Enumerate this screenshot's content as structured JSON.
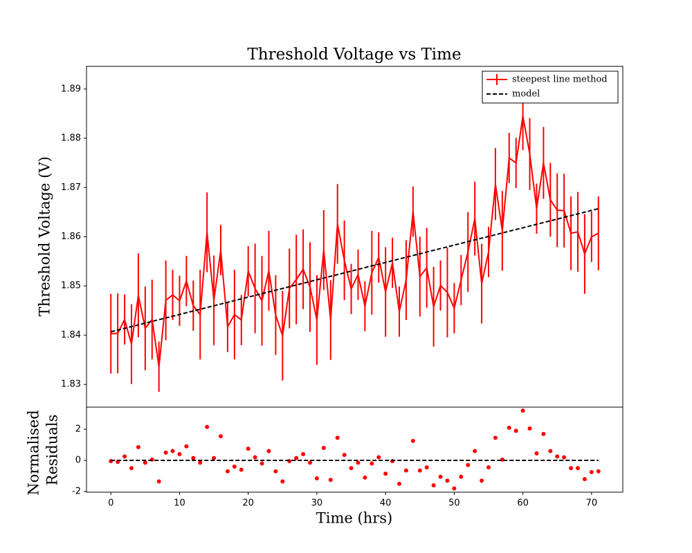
{
  "chart_data": [
    {
      "type": "line",
      "title": "Threshold Voltage vs Time",
      "ylabel": "Threshold Voltage (V)",
      "xlim": [
        -3.55,
        74.55
      ],
      "ylim": [
        1.8254,
        1.8946
      ],
      "yticks": [
        1.83,
        1.84,
        1.85,
        1.86,
        1.87,
        1.88,
        1.89
      ],
      "legend": "upper right",
      "series": [
        {
          "name": "steepest line method",
          "color": "#ff0000",
          "errorbars": true,
          "x": [
            0,
            1,
            2,
            3,
            4,
            5,
            6,
            7,
            8,
            9,
            10,
            11,
            12,
            13,
            14,
            15,
            16,
            17,
            18,
            19,
            20,
            21,
            22,
            23,
            24,
            25,
            26,
            27,
            28,
            29,
            30,
            31,
            32,
            33,
            34,
            35,
            36,
            37,
            38,
            39,
            40,
            41,
            42,
            43,
            44,
            45,
            46,
            47,
            48,
            49,
            50,
            51,
            52,
            53,
            54,
            55,
            56,
            57,
            58,
            59,
            60,
            61,
            62,
            63,
            64,
            65,
            66,
            67,
            68,
            69,
            70,
            71
          ],
          "values": [
            1.8403,
            1.8404,
            1.8432,
            1.8382,
            1.8481,
            1.8414,
            1.8432,
            1.8336,
            1.8471,
            1.8482,
            1.847,
            1.851,
            1.846,
            1.8442,
            1.8609,
            1.8471,
            1.8573,
            1.8417,
            1.8442,
            1.8431,
            1.853,
            1.8495,
            1.847,
            1.8531,
            1.8441,
            1.8399,
            1.8495,
            1.8513,
            1.8534,
            1.8498,
            1.8431,
            1.8573,
            1.8431,
            1.8626,
            1.8552,
            1.8494,
            1.8523,
            1.8459,
            1.8527,
            1.8558,
            1.8488,
            1.8547,
            1.8448,
            1.8512,
            1.8651,
            1.8519,
            1.8537,
            1.8458,
            1.8501,
            1.8487,
            1.8455,
            1.8512,
            1.8569,
            1.8637,
            1.8505,
            1.8569,
            1.8707,
            1.8612,
            1.876,
            1.875,
            1.8845,
            1.8768,
            1.8657,
            1.875,
            1.8675,
            1.8654,
            1.8653,
            1.8607,
            1.861,
            1.8565,
            1.86,
            1.8607
          ],
          "errors": [
            0.0081,
            0.0081,
            0.0051,
            0.0081,
            0.0085,
            0.0085,
            0.0081,
            0.0051,
            0.0081,
            0.0051,
            0.0051,
            0.0051,
            0.0051,
            0.0091,
            0.0081,
            0.0091,
            0.0051,
            0.0051,
            0.0091,
            0.0051,
            0.0051,
            0.0091,
            0.0091,
            0.0081,
            0.0081,
            0.0091,
            0.0081,
            0.0091,
            0.0081,
            0.0091,
            0.0091,
            0.0081,
            0.0081,
            0.0081,
            0.0081,
            0.0051,
            0.0051,
            0.0051,
            0.0085,
            0.0051,
            0.0091,
            0.0051,
            0.0051,
            0.0081,
            0.0051,
            0.0081,
            0.0081,
            0.0081,
            0.0051,
            0.0091,
            0.0051,
            0.0051,
            0.0081,
            0.0075,
            0.0081,
            0.0051,
            0.0073,
            0.0081,
            0.0051,
            0.0051,
            0.0069,
            0.0073,
            0.0051,
            0.0073,
            0.0075,
            0.0075,
            0.0075,
            0.0075,
            0.0081,
            0.0081,
            0.0051,
            0.0075
          ]
        },
        {
          "name": "model",
          "color": "#000000",
          "dashed": true,
          "x": [
            0,
            71
          ],
          "values": [
            1.8407,
            1.8657
          ]
        }
      ]
    },
    {
      "type": "scatter",
      "ylabel": [
        "Normalised",
        "Residuals"
      ],
      "xlabel": "Time (hrs)",
      "xlim": [
        -3.55,
        74.55
      ],
      "ylim": [
        -2.04,
        3.42
      ],
      "xticks": [
        0,
        10,
        20,
        30,
        40,
        50,
        60,
        70
      ],
      "yticks": [
        -2,
        0,
        2
      ],
      "series": [
        {
          "color": "#ff0000",
          "x": [
            0,
            1,
            2,
            3,
            4,
            5,
            6,
            7,
            8,
            9,
            10,
            11,
            12,
            13,
            14,
            15,
            16,
            17,
            18,
            19,
            20,
            21,
            22,
            23,
            24,
            25,
            26,
            27,
            28,
            29,
            30,
            31,
            32,
            33,
            34,
            35,
            36,
            37,
            38,
            39,
            40,
            41,
            42,
            43,
            44,
            45,
            46,
            47,
            48,
            49,
            50,
            51,
            52,
            53,
            54,
            55,
            56,
            57,
            58,
            59,
            60,
            61,
            62,
            63,
            64,
            65,
            66,
            67,
            68,
            69,
            70,
            71
          ],
          "values": [
            -0.05,
            -0.1,
            0.25,
            -0.5,
            0.85,
            -0.15,
            0.05,
            -1.35,
            0.5,
            0.6,
            0.4,
            0.9,
            0.15,
            -0.15,
            2.15,
            0.15,
            1.55,
            -0.7,
            -0.4,
            -0.6,
            0.75,
            0.2,
            -0.2,
            0.6,
            -0.7,
            -1.35,
            -0.05,
            0.15,
            0.4,
            -0.15,
            -1.15,
            0.8,
            -1.25,
            1.45,
            0.35,
            -0.5,
            -0.15,
            -1.1,
            -0.2,
            0.2,
            -0.85,
            -0.05,
            -1.5,
            -0.65,
            1.25,
            -0.65,
            -0.45,
            -1.6,
            -1.05,
            -1.3,
            -1.8,
            -1.05,
            -0.3,
            0.6,
            -1.3,
            -0.45,
            1.45,
            0.05,
            2.1,
            1.9,
            3.2,
            2.05,
            0.45,
            1.7,
            0.6,
            0.25,
            0.2,
            -0.5,
            -0.5,
            -1.2,
            -0.75,
            -0.7
          ]
        },
        {
          "color": "#000000",
          "dashed": true,
          "line": true,
          "x": [
            0,
            71
          ],
          "values": [
            0,
            0
          ]
        }
      ]
    }
  ]
}
